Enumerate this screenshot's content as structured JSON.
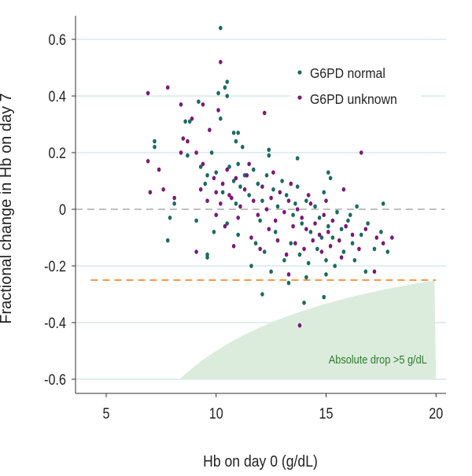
{
  "chart_data": {
    "type": "scatter",
    "xlabel": "Hb on day 0 (g/dL)",
    "ylabel": "Fractional change in Hb on day 7",
    "xlim": [
      3.6,
      20.4
    ],
    "ylim": [
      -0.65,
      0.68
    ],
    "xticks": [
      5,
      10,
      15,
      20
    ],
    "yticks": [
      -0.6,
      -0.4,
      -0.2,
      0,
      0.2,
      0.4,
      0.6
    ],
    "ytick_labels": [
      "-0.6",
      "-0.4",
      "-0.2",
      "0",
      "0.2",
      "0.4",
      "0.6"
    ],
    "grid": "horizontal",
    "legend": "top-right",
    "reference_lines": [
      {
        "y": 0,
        "style": "dashed",
        "color": "#9a9a9a"
      },
      {
        "y": -0.25,
        "style": "dashed",
        "color": "#f08a3c",
        "x_range": [
          4.3,
          20
        ]
      }
    ],
    "shaded_region": {
      "label": "Absolute drop >5 g/dL",
      "lower": -0.6,
      "upper_formula": "-5/x",
      "x_range": [
        8.33,
        20
      ],
      "color": "#dcecdc",
      "label_color": "#2e7a2e"
    },
    "series": [
      {
        "name": "G6PD normal",
        "color": "#1b6b62",
        "points": [
          [
            10.2,
            0.64
          ],
          [
            10.5,
            0.45
          ],
          [
            10.4,
            0.43
          ],
          [
            10.5,
            0.4
          ],
          [
            10.1,
            0.41
          ],
          [
            10.2,
            0.32
          ],
          [
            9.2,
            0.38
          ],
          [
            7.2,
            0.24
          ],
          [
            7.2,
            0.22
          ],
          [
            8.8,
            0.31
          ],
          [
            8.6,
            0.31
          ],
          [
            10.8,
            0.27
          ],
          [
            11.0,
            0.27
          ],
          [
            10.9,
            0.24
          ],
          [
            11.2,
            0.22
          ],
          [
            13.7,
            0.18
          ],
          [
            12.4,
            0.21
          ],
          [
            12.4,
            0.19
          ],
          [
            15.1,
            0.13
          ],
          [
            15.2,
            0.11
          ],
          [
            17.6,
            0.02
          ],
          [
            7.8,
            -0.11
          ],
          [
            9.6,
            -0.17
          ],
          [
            9.6,
            -0.16
          ],
          [
            12.1,
            -0.3
          ],
          [
            14.0,
            -0.33
          ],
          [
            14.9,
            -0.31
          ],
          [
            13.3,
            -0.26
          ],
          [
            14.1,
            -0.24
          ],
          [
            15.0,
            -0.23
          ],
          [
            16.8,
            -0.22
          ],
          [
            17.8,
            -0.15
          ],
          [
            11.6,
            -0.2
          ],
          [
            12.5,
            -0.22
          ],
          [
            7.9,
            -0.03
          ],
          [
            8.1,
            0.02
          ],
          [
            8.7,
            0.19
          ],
          [
            9.3,
            0.15
          ],
          [
            9.5,
            0.09
          ],
          [
            9.6,
            0.12
          ],
          [
            9.8,
            0.2
          ],
          [
            10.0,
            0.13
          ],
          [
            10.3,
            0.06
          ],
          [
            10.6,
            0.15
          ],
          [
            10.8,
            0.1
          ],
          [
            11.0,
            0.16
          ],
          [
            11.1,
            0.08
          ],
          [
            11.3,
            0.12
          ],
          [
            11.5,
            0.05
          ],
          [
            11.7,
            0.14
          ],
          [
            11.9,
            0.09
          ],
          [
            12.1,
            0.03
          ],
          [
            12.3,
            0.12
          ],
          [
            12.6,
            0.07
          ],
          [
            12.8,
            0.01
          ],
          [
            13.0,
            0.1
          ],
          [
            13.2,
            0.05
          ],
          [
            13.5,
            -0.02
          ],
          [
            13.7,
            0.08
          ],
          [
            13.9,
            -0.05
          ],
          [
            14.1,
            0.03
          ],
          [
            14.3,
            -0.08
          ],
          [
            14.5,
            0.01
          ],
          [
            14.7,
            -0.03
          ],
          [
            14.9,
            0.06
          ],
          [
            15.1,
            -0.06
          ],
          [
            15.3,
            -0.1
          ],
          [
            15.5,
            -0.01
          ],
          [
            15.7,
            -0.07
          ],
          [
            16.0,
            -0.04
          ],
          [
            16.2,
            -0.12
          ],
          [
            16.4,
            0.01
          ],
          [
            16.6,
            -0.09
          ],
          [
            16.9,
            -0.05
          ],
          [
            17.2,
            -0.14
          ],
          [
            17.5,
            -0.08
          ],
          [
            10.5,
            -0.05
          ],
          [
            11.0,
            -0.09
          ],
          [
            11.8,
            -0.12
          ],
          [
            12.2,
            -0.15
          ],
          [
            12.7,
            -0.08
          ],
          [
            13.1,
            -0.18
          ],
          [
            13.4,
            -0.12
          ],
          [
            13.8,
            -0.16
          ],
          [
            14.2,
            -0.19
          ],
          [
            14.6,
            -0.14
          ],
          [
            15.0,
            -0.18
          ],
          [
            15.4,
            -0.2
          ],
          [
            15.8,
            -0.15
          ],
          [
            16.3,
            -0.18
          ],
          [
            9.1,
            -0.04
          ],
          [
            9.9,
            -0.08
          ],
          [
            10.9,
            0.02
          ],
          [
            12.0,
            -0.04
          ],
          [
            13.6,
            0.02
          ],
          [
            14.8,
            -0.1
          ],
          [
            16.1,
            -0.02
          ]
        ]
      },
      {
        "name": "G6PD unknown",
        "color": "#7b1a78",
        "points": [
          [
            6.9,
            0.41
          ],
          [
            7.8,
            0.43
          ],
          [
            8.4,
            0.37
          ],
          [
            9.4,
            0.37
          ],
          [
            10.2,
            0.52
          ],
          [
            10.1,
            0.35
          ],
          [
            12.2,
            0.34
          ],
          [
            16.6,
            0.2
          ],
          [
            6.9,
            0.17
          ],
          [
            7.0,
            0.06
          ],
          [
            7.4,
            0.14
          ],
          [
            7.6,
            0.07
          ],
          [
            8.1,
            0.04
          ],
          [
            8.5,
            0.25
          ],
          [
            8.4,
            0.2
          ],
          [
            8.9,
            0.32
          ],
          [
            13.8,
            -0.41
          ],
          [
            17.2,
            -0.22
          ],
          [
            18.0,
            -0.1
          ],
          [
            9.1,
            -0.15
          ],
          [
            13.3,
            -0.23
          ],
          [
            10.8,
            -0.13
          ],
          [
            8.7,
            0.24
          ],
          [
            9.1,
            0.2
          ],
          [
            9.4,
            0.16
          ],
          [
            9.7,
            0.28
          ],
          [
            9.9,
            0.11
          ],
          [
            10.0,
            0.06
          ],
          [
            10.2,
            0.02
          ],
          [
            10.3,
            0.09
          ],
          [
            10.5,
            0.14
          ],
          [
            10.7,
            0.04
          ],
          [
            10.9,
            0.11
          ],
          [
            11.1,
            0.01
          ],
          [
            11.3,
            0.07
          ],
          [
            11.5,
            0.16
          ],
          [
            11.7,
            0.03
          ],
          [
            11.9,
            -0.02
          ],
          [
            12.1,
            0.08
          ],
          [
            12.3,
            0.0
          ],
          [
            12.5,
            0.04
          ],
          [
            12.7,
            -0.04
          ],
          [
            12.9,
            0.06
          ],
          [
            13.1,
            -0.01
          ],
          [
            13.3,
            0.03
          ],
          [
            13.5,
            -0.06
          ],
          [
            13.7,
            0.0
          ],
          [
            13.9,
            -0.03
          ],
          [
            14.1,
            -0.07
          ],
          [
            14.3,
            0.02
          ],
          [
            14.5,
            -0.05
          ],
          [
            14.7,
            -0.09
          ],
          [
            14.9,
            -0.02
          ],
          [
            15.1,
            -0.08
          ],
          [
            15.3,
            -0.04
          ],
          [
            15.6,
            -0.11
          ],
          [
            15.9,
            -0.06
          ],
          [
            16.2,
            -0.09
          ],
          [
            16.5,
            -0.14
          ],
          [
            16.8,
            -0.07
          ],
          [
            17.3,
            -0.1
          ],
          [
            17.6,
            -0.12
          ],
          [
            10.4,
            -0.06
          ],
          [
            11.0,
            -0.03
          ],
          [
            11.6,
            -0.1
          ],
          [
            12.0,
            -0.14
          ],
          [
            12.4,
            -0.07
          ],
          [
            12.8,
            -0.11
          ],
          [
            13.2,
            -0.16
          ],
          [
            13.6,
            -0.12
          ],
          [
            14.0,
            -0.14
          ],
          [
            14.4,
            -0.11
          ],
          [
            14.8,
            -0.15
          ],
          [
            15.2,
            -0.13
          ],
          [
            15.7,
            -0.17
          ],
          [
            9.6,
            0.03
          ],
          [
            10.6,
            0.05
          ],
          [
            11.4,
            0.12
          ],
          [
            12.6,
            0.13
          ],
          [
            13.4,
            0.09
          ],
          [
            14.2,
            0.05
          ],
          [
            15.0,
            0.03
          ],
          [
            15.8,
            0.07
          ],
          [
            9.3,
            0.07
          ],
          [
            10.0,
            -0.02
          ]
        ]
      }
    ]
  }
}
